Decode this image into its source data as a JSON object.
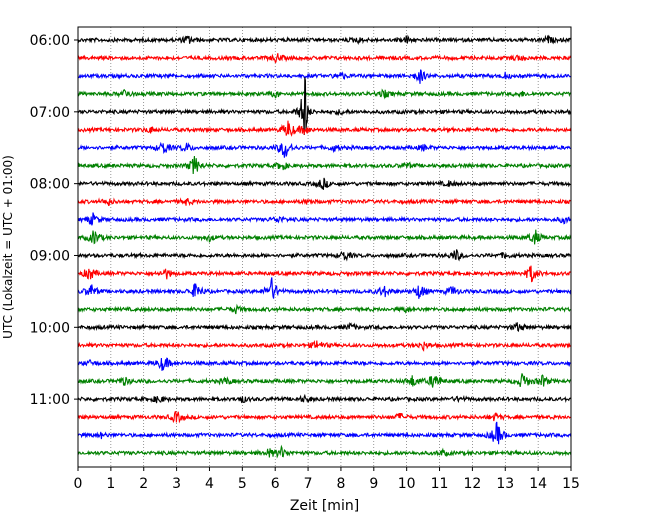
{
  "chart_data": {
    "type": "line",
    "title": "",
    "xlabel": "Zeit  [min]",
    "ylabel": "UTC (Lokalzeit = UTC + 01:00)",
    "xlim": [
      0,
      15
    ],
    "x_ticks": [
      "0",
      "1",
      "2",
      "3",
      "4",
      "5",
      "6",
      "7",
      "8",
      "9",
      "10",
      "11",
      "12",
      "13",
      "14",
      "15"
    ],
    "y_ticks": [
      "06:00",
      "07:00",
      "08:00",
      "09:00",
      "10:00",
      "11:00"
    ],
    "grid": "vertical dotted",
    "trace_minutes": 15,
    "trace_colors": [
      "#000000",
      "#ff0000",
      "#0000ff",
      "#008000"
    ],
    "traces": [
      {
        "start": "06:00",
        "events": [
          [
            3.35,
            0.4
          ],
          [
            8.5,
            0.25
          ],
          [
            10.0,
            0.35
          ],
          [
            14.3,
            0.3
          ]
        ]
      },
      {
        "start": "06:15",
        "events": [
          [
            6.05,
            0.45
          ],
          [
            13.4,
            0.25
          ]
        ]
      },
      {
        "start": "06:30",
        "events": [
          [
            8.0,
            0.35
          ],
          [
            10.4,
            0.7
          ],
          [
            13.0,
            0.25
          ]
        ]
      },
      {
        "start": "06:45",
        "events": [
          [
            1.45,
            0.45
          ],
          [
            6.0,
            0.3
          ],
          [
            9.3,
            0.35
          ],
          [
            13.5,
            0.2
          ]
        ]
      },
      {
        "start": "07:00",
        "events": [
          [
            6.9,
            4.0
          ],
          [
            6.85,
            1.2
          ],
          [
            8.0,
            0.2
          ]
        ]
      },
      {
        "start": "07:15",
        "events": [
          [
            2.2,
            0.3
          ],
          [
            6.4,
            1.0
          ],
          [
            6.9,
            0.5
          ]
        ]
      },
      {
        "start": "07:30",
        "events": [
          [
            2.6,
            0.7
          ],
          [
            3.3,
            0.4
          ],
          [
            6.3,
            1.2
          ],
          [
            7.8,
            0.3
          ],
          [
            10.5,
            0.25
          ]
        ]
      },
      {
        "start": "07:45",
        "events": [
          [
            3.55,
            1.0
          ],
          [
            6.2,
            0.45
          ],
          [
            10.0,
            0.3
          ]
        ]
      },
      {
        "start": "08:00",
        "events": [
          [
            7.45,
            0.6
          ],
          [
            11.3,
            0.25
          ]
        ]
      },
      {
        "start": "08:15",
        "events": [
          [
            0.9,
            0.35
          ],
          [
            3.3,
            0.3
          ],
          [
            7.0,
            0.2
          ]
        ]
      },
      {
        "start": "08:30",
        "events": [
          [
            0.45,
            0.6
          ],
          [
            6.1,
            0.3
          ],
          [
            14.8,
            0.3
          ]
        ]
      },
      {
        "start": "08:45",
        "events": [
          [
            0.5,
            0.8
          ],
          [
            4.0,
            0.3
          ],
          [
            13.9,
            0.8
          ]
        ]
      },
      {
        "start": "09:00",
        "events": [
          [
            8.1,
            0.5
          ],
          [
            11.5,
            0.6
          ],
          [
            13.0,
            0.25
          ]
        ]
      },
      {
        "start": "09:15",
        "events": [
          [
            0.35,
            0.7
          ],
          [
            2.7,
            0.45
          ],
          [
            13.8,
            0.9
          ]
        ]
      },
      {
        "start": "09:30",
        "events": [
          [
            0.4,
            0.7
          ],
          [
            3.6,
            0.9
          ],
          [
            5.9,
            1.3
          ],
          [
            9.3,
            0.6
          ],
          [
            10.4,
            0.8
          ],
          [
            11.4,
            0.5
          ]
        ]
      },
      {
        "start": "09:45",
        "events": [
          [
            4.8,
            0.35
          ],
          [
            10.0,
            0.2
          ]
        ]
      },
      {
        "start": "10:00",
        "events": [
          [
            8.3,
            0.3
          ],
          [
            13.4,
            0.45
          ]
        ]
      },
      {
        "start": "10:15",
        "events": [
          [
            7.3,
            0.5
          ],
          [
            10.5,
            0.4
          ]
        ]
      },
      {
        "start": "10:30",
        "events": [
          [
            2.6,
            0.85
          ],
          [
            0.4,
            0.25
          ]
        ]
      },
      {
        "start": "10:45",
        "events": [
          [
            1.4,
            0.4
          ],
          [
            4.5,
            0.35
          ],
          [
            10.2,
            0.6
          ],
          [
            10.85,
            0.9
          ],
          [
            13.55,
            0.9
          ],
          [
            14.15,
            0.6
          ]
        ]
      },
      {
        "start": "11:00",
        "events": [
          [
            2.45,
            0.4
          ],
          [
            5.0,
            0.3
          ],
          [
            6.9,
            0.25
          ],
          [
            11.6,
            0.2
          ]
        ]
      },
      {
        "start": "11:15",
        "events": [
          [
            3.0,
            0.6
          ],
          [
            9.8,
            0.35
          ],
          [
            12.7,
            0.35
          ]
        ]
      },
      {
        "start": "11:30",
        "events": [
          [
            0.7,
            0.25
          ],
          [
            12.75,
            1.3
          ]
        ]
      },
      {
        "start": "11:45",
        "events": [
          [
            5.8,
            0.4
          ],
          [
            6.2,
            0.55
          ],
          [
            11.1,
            0.25
          ]
        ]
      }
    ]
  }
}
